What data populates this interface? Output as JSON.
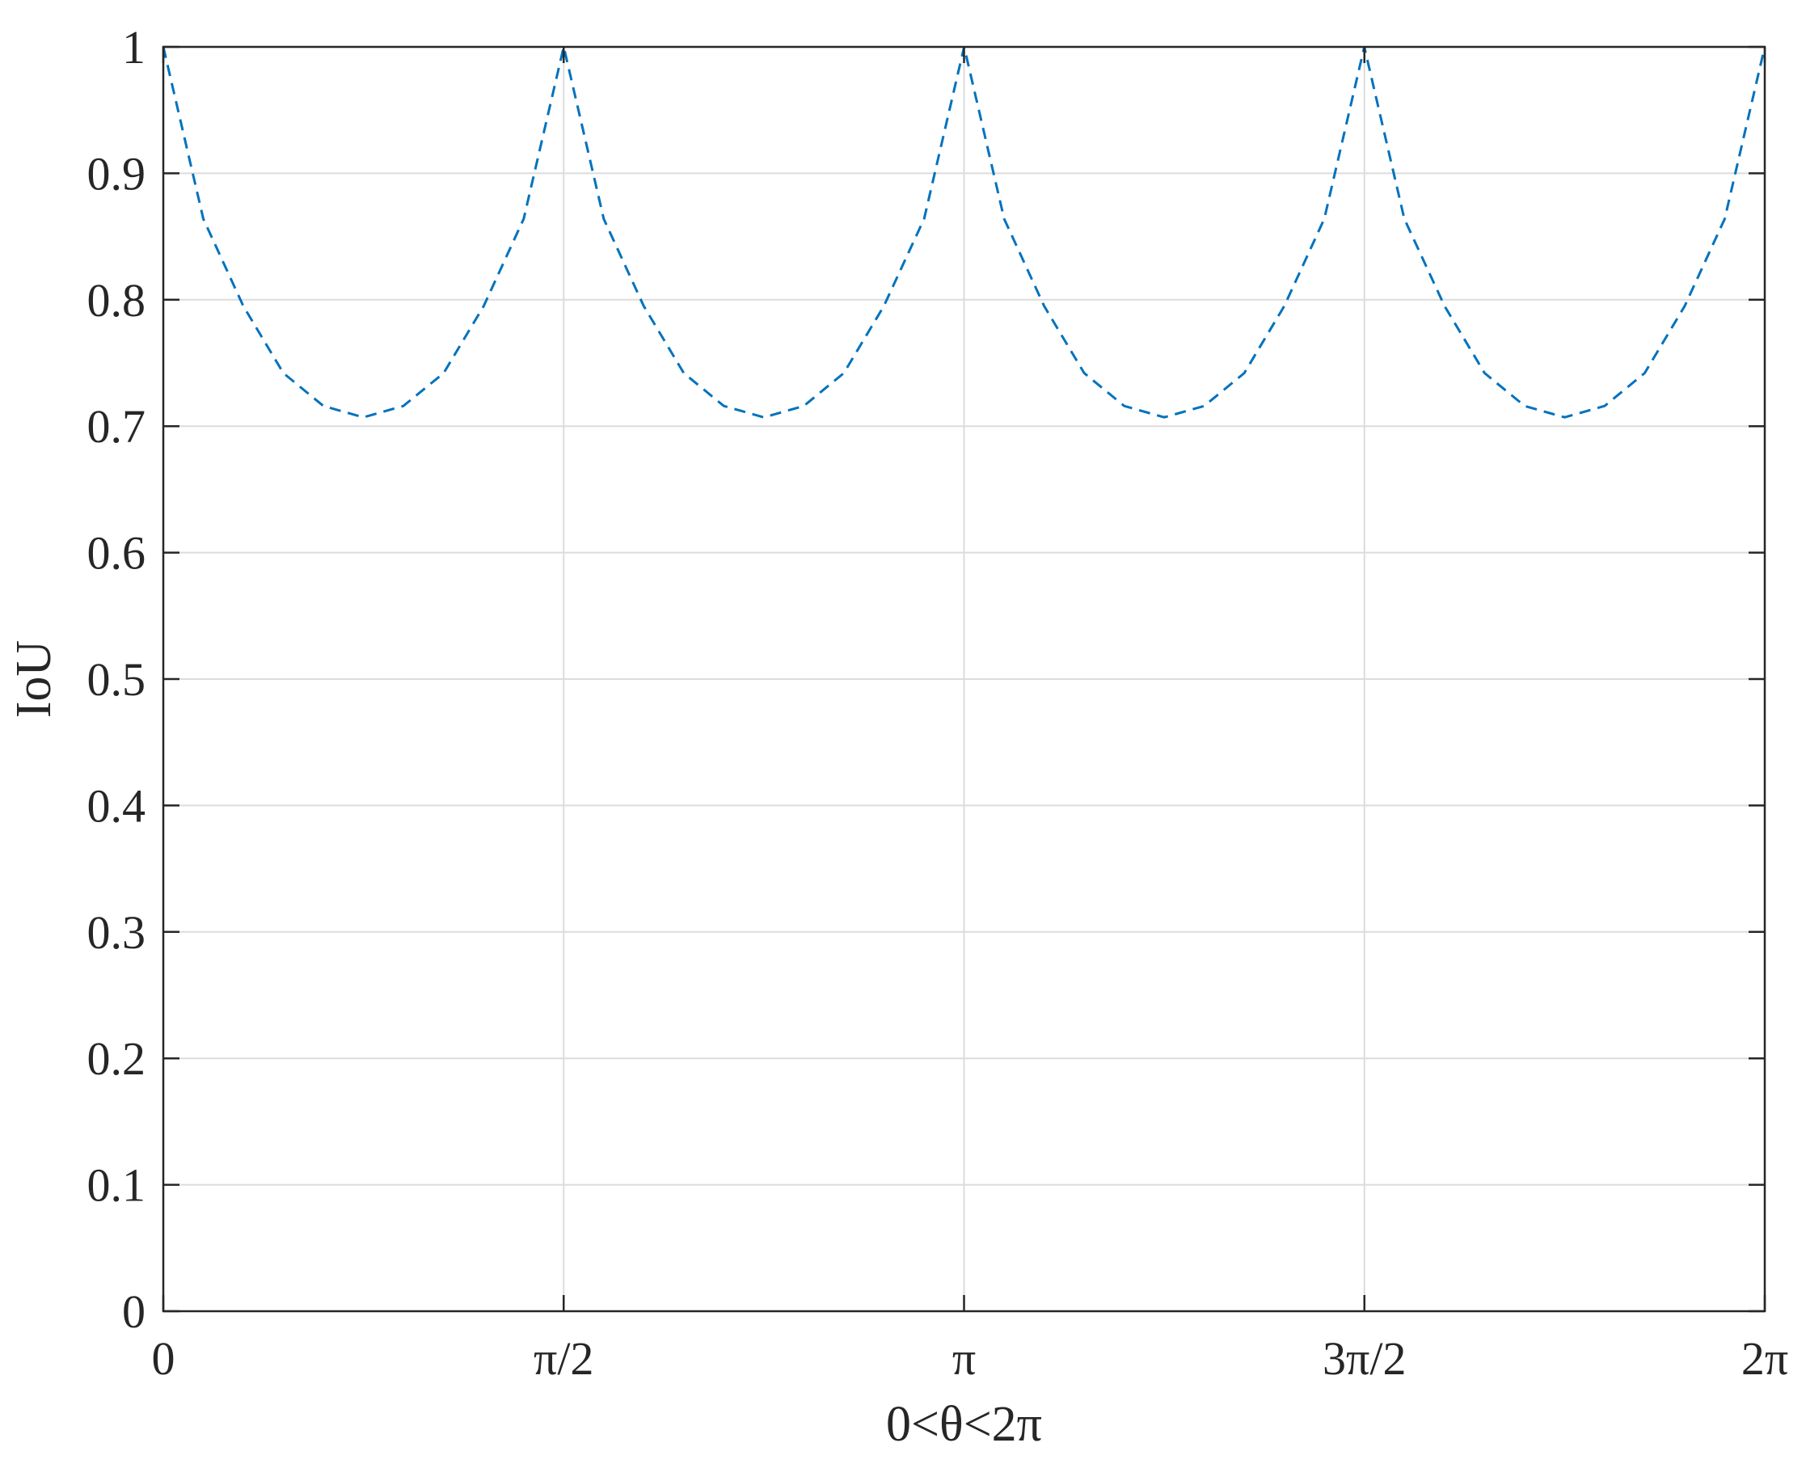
{
  "chart_data": {
    "type": "line",
    "xlabel": "0<θ<2π",
    "ylabel": "IoU",
    "xlim": [
      0,
      6.283185307
    ],
    "ylim": [
      0,
      1
    ],
    "grid": true,
    "x_ticks": [
      {
        "value": 0,
        "label": "0"
      },
      {
        "value": 1.570796327,
        "label": "π/2"
      },
      {
        "value": 3.141592654,
        "label": "π"
      },
      {
        "value": 4.71238898,
        "label": "3π/2"
      },
      {
        "value": 6.283185307,
        "label": "2π"
      }
    ],
    "y_ticks": [
      {
        "value": 0,
        "label": "0"
      },
      {
        "value": 0.1,
        "label": "0.1"
      },
      {
        "value": 0.2,
        "label": "0.2"
      },
      {
        "value": 0.3,
        "label": "0.3"
      },
      {
        "value": 0.4,
        "label": "0.4"
      },
      {
        "value": 0.5,
        "label": "0.5"
      },
      {
        "value": 0.6,
        "label": "0.6"
      },
      {
        "value": 0.7,
        "label": "0.7"
      },
      {
        "value": 0.8,
        "label": "0.8"
      },
      {
        "value": 0.9,
        "label": "0.9"
      },
      {
        "value": 1,
        "label": "1"
      }
    ],
    "series": [
      {
        "color": "#0072BD",
        "style": "dashed",
        "x": [
          0,
          0.157,
          0.314,
          0.471,
          0.628,
          0.785,
          0.942,
          1.1,
          1.257,
          1.414,
          1.571,
          1.728,
          1.885,
          2.042,
          2.199,
          2.356,
          2.513,
          2.67,
          2.827,
          2.985,
          3.142,
          3.299,
          3.456,
          3.613,
          3.77,
          3.927,
          4.084,
          4.241,
          4.398,
          4.555,
          4.712,
          4.869,
          5.027,
          5.184,
          5.341,
          5.498,
          5.655,
          5.812,
          5.969,
          6.126,
          6.283
        ],
        "y": [
          1,
          0.864,
          0.795,
          0.742,
          0.716,
          0.707,
          0.716,
          0.742,
          0.795,
          0.864,
          1,
          0.864,
          0.795,
          0.742,
          0.716,
          0.707,
          0.716,
          0.742,
          0.795,
          0.864,
          1,
          0.864,
          0.795,
          0.742,
          0.716,
          0.707,
          0.716,
          0.742,
          0.795,
          0.864,
          1,
          0.864,
          0.795,
          0.742,
          0.716,
          0.707,
          0.716,
          0.742,
          0.795,
          0.864,
          1
        ]
      }
    ]
  }
}
